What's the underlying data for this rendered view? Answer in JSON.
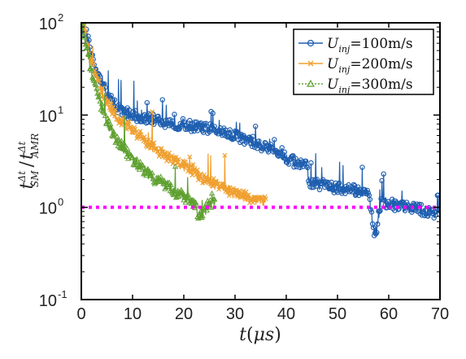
{
  "chart_data": {
    "type": "line",
    "xlabel": "t(μs)",
    "xlabel_parts": {
      "var": "t",
      "paren_open": "(",
      "mu": "μ",
      "unit": "s",
      "paren_close": ")"
    },
    "ylabel": "t^{Δt}_{SM} / t^{Δt}_{AMR}",
    "ylabel_parts": {
      "t1": "t",
      "sup1": "Δt",
      "sub1": "SM",
      "slash": "/",
      "t2": "t",
      "sup2": "Δt",
      "sub2": "AMR"
    },
    "xlim": [
      0,
      70
    ],
    "ylim": [
      0.1,
      100
    ],
    "yscale": "log",
    "x_ticks": [
      "0",
      "10",
      "20",
      "30",
      "40",
      "50",
      "60",
      "70"
    ],
    "y_ticks": [
      {
        "base": "10",
        "exp": "-1",
        "value": 0.1
      },
      {
        "base": "10",
        "exp": "0",
        "value": 1
      },
      {
        "base": "10",
        "exp": "1",
        "value": 10
      },
      {
        "base": "10",
        "exp": "2",
        "value": 100
      }
    ],
    "grid": false,
    "legend_position": "top-right",
    "reference_line": {
      "y": 1.0,
      "color": "#ff00ff",
      "style": "dotted"
    },
    "series": [
      {
        "name": "U_inj=100m/s",
        "legend_parts": {
          "u": "U",
          "sub": "inj",
          "rest": "=100m/s"
        },
        "color": "#1f5fb0",
        "marker": "circle",
        "x": [
          0,
          0.5,
          1,
          2,
          3,
          4,
          5,
          6,
          7,
          8,
          9,
          10,
          12,
          14,
          16,
          18,
          20,
          22,
          24,
          26,
          28,
          30,
          32,
          34,
          36,
          38,
          40,
          42,
          44,
          44.5,
          46,
          48,
          50,
          52,
          54,
          56,
          56.5,
          57,
          57.5,
          58,
          58.5,
          60,
          62,
          64,
          66,
          68,
          70
        ],
        "y": [
          100,
          95,
          75,
          45,
          30,
          22,
          17,
          14,
          12,
          11,
          10.5,
          10,
          9.5,
          9,
          8.5,
          8,
          8,
          7.5,
          7.2,
          7,
          6.5,
          6,
          5.5,
          5,
          4.5,
          4,
          3.5,
          3,
          2.8,
          1.8,
          1.8,
          1.7,
          1.6,
          1.6,
          1.5,
          1.45,
          1.0,
          0.6,
          0.5,
          0.8,
          1.2,
          1.1,
          1.0,
          1.0,
          0.95,
          0.9,
          0.85
        ]
      },
      {
        "name": "U_inj=200m/s",
        "legend_parts": {
          "u": "U",
          "sub": "inj",
          "rest": "=200m/s"
        },
        "color": "#f0a030",
        "marker": "x",
        "x": [
          0,
          0.5,
          1,
          2,
          3,
          4,
          5,
          6,
          8,
          10,
          12,
          14,
          16,
          18,
          20,
          22,
          24,
          26,
          28,
          30,
          32,
          34,
          36
        ],
        "y": [
          100,
          90,
          65,
          38,
          25,
          18,
          14,
          11,
          8.5,
          7,
          5.5,
          4.5,
          3.8,
          3.2,
          2.8,
          2.4,
          2.0,
          1.8,
          1.6,
          1.4,
          1.3,
          1.2,
          1.15
        ]
      },
      {
        "name": "U_inj=300m/s",
        "legend_parts": {
          "u": "U",
          "sub": "inj",
          "rest": "=300m/s"
        },
        "color": "#5fa030",
        "marker": "triangle",
        "x": [
          0,
          0.5,
          1,
          2,
          3,
          4,
          5,
          6,
          8,
          10,
          12,
          14,
          16,
          18,
          20,
          21,
          22,
          23,
          24,
          25,
          26
        ],
        "y": [
          100,
          80,
          55,
          28,
          18,
          12,
          8.5,
          6.5,
          4.5,
          3.3,
          2.6,
          2.1,
          1.8,
          1.5,
          1.3,
          1.2,
          1.1,
          0.8,
          0.9,
          1.1,
          1.15
        ]
      }
    ]
  }
}
